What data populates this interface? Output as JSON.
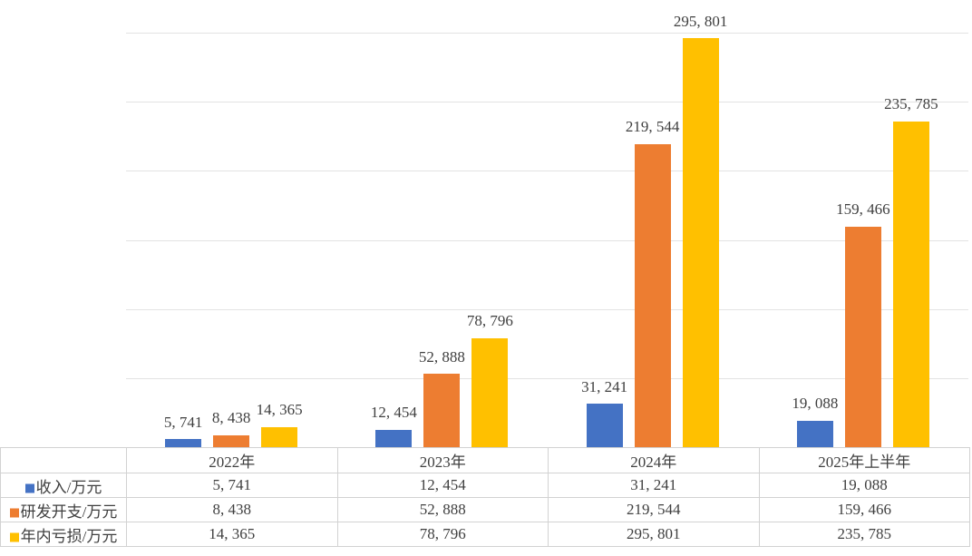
{
  "chart_data": {
    "type": "bar",
    "title": "",
    "xlabel": "",
    "ylabel": "",
    "categories": [
      "2022年",
      "2023年",
      "2024年",
      "2025年上半年"
    ],
    "series": [
      {
        "name": "收入/万元",
        "color": "#4472C4",
        "values": [
          5741,
          12454,
          31241,
          19088
        ],
        "labels": [
          "5, 741",
          "12, 454",
          "31, 241",
          "19, 088"
        ]
      },
      {
        "name": "研发开支/万元",
        "color": "#ED7D31",
        "values": [
          8438,
          52888,
          219544,
          159466
        ],
        "labels": [
          "8, 438",
          "52, 888",
          "219, 544",
          "159, 466"
        ]
      },
      {
        "name": "年内亏损/万元",
        "color": "#FFC000",
        "values": [
          14365,
          78796,
          295801,
          235785
        ],
        "labels": [
          "14, 365",
          "78, 796",
          "295, 801",
          "235, 785"
        ]
      }
    ],
    "ylim": [
      0,
      300000
    ],
    "grid_step": 50000,
    "grid": "on",
    "y_tick_labels_visible": false,
    "legend_position": "data-table-left-column",
    "data_labels": "outside-end",
    "data_table": true
  },
  "colors": {
    "background": "#FFFFFF",
    "gridline": "#E3E3E3",
    "table_border": "#D2D2D2",
    "text": "#3F3F3F"
  }
}
